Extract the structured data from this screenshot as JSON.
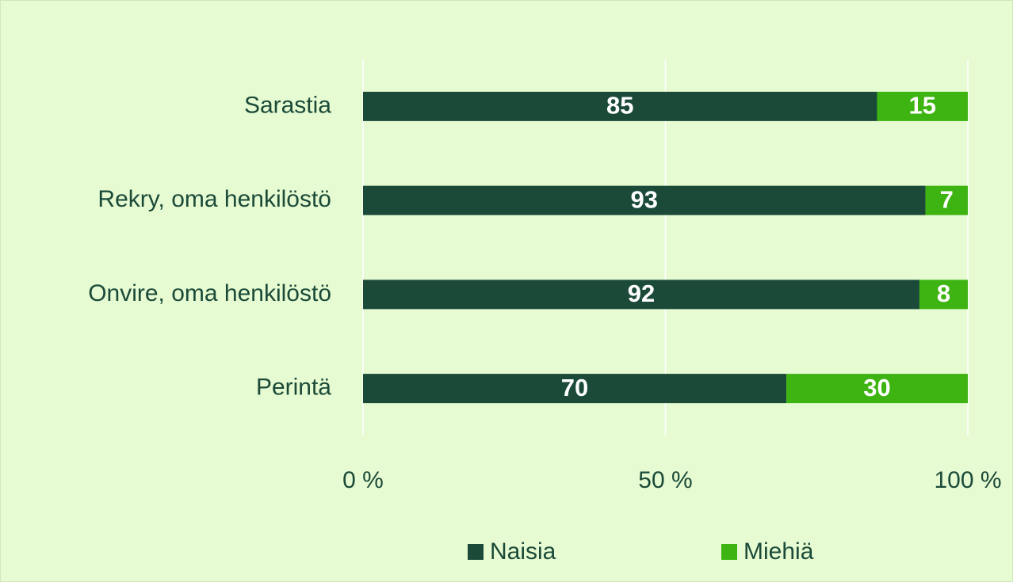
{
  "chart_data": {
    "type": "bar",
    "orientation": "horizontal",
    "stacked": true,
    "categories": [
      "Sarastia",
      "Rekry, oma henkilöstö",
      "Onvire, oma henkilöstö",
      "Perintä"
    ],
    "series": [
      {
        "name": "Naisia",
        "color": "#1b4a39",
        "values": [
          85,
          93,
          92,
          70
        ]
      },
      {
        "name": "Miehiä",
        "color": "#3db411",
        "values": [
          15,
          7,
          8,
          30
        ]
      }
    ],
    "xlim": [
      0,
      100
    ],
    "xticks": [
      {
        "value": 0,
        "label": "0 %"
      },
      {
        "value": 50,
        "label": "50 %"
      },
      {
        "value": 100,
        "label": "100 %"
      }
    ],
    "grid": true,
    "legend": "bottom"
  }
}
